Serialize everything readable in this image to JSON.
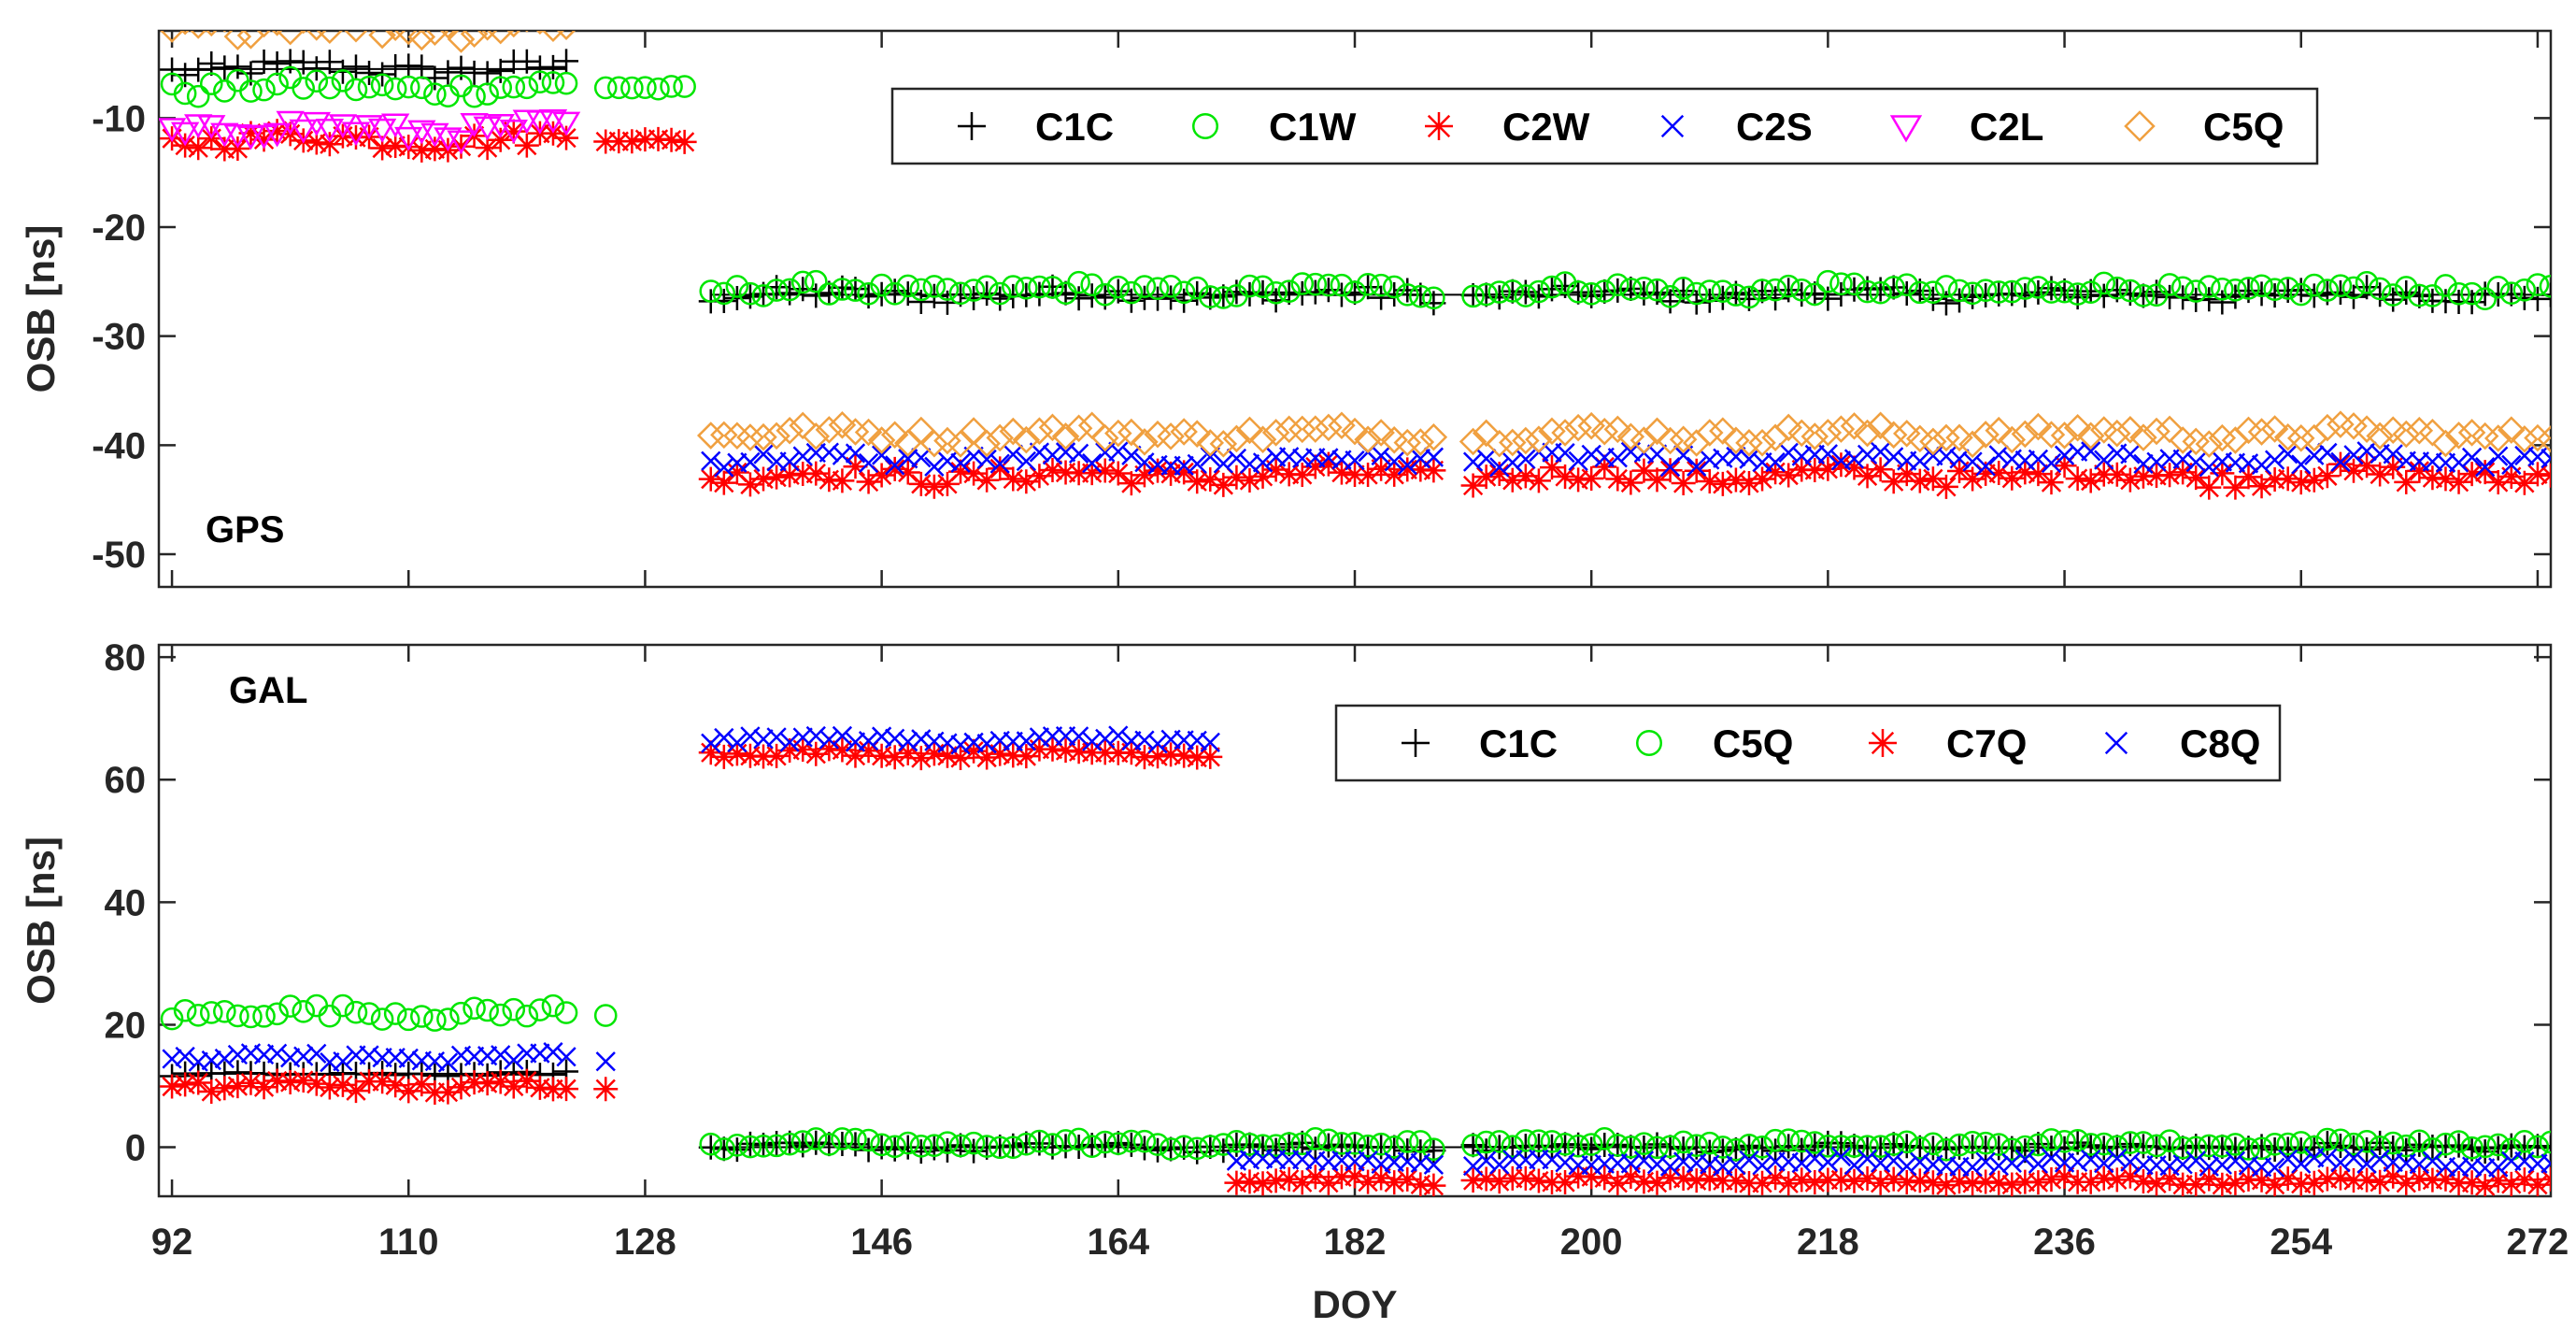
{
  "chart_data": [
    {
      "type": "scatter",
      "panel": "GPS",
      "xlabel": "",
      "ylabel": "OSB [ns]",
      "xlim": [
        91,
        273
      ],
      "ylim": [
        -53,
        -2
      ],
      "xticks": [
        92,
        110,
        128,
        146,
        164,
        182,
        200,
        218,
        236,
        254,
        272
      ],
      "yticks": [
        -10,
        -20,
        -30,
        -40,
        -50
      ],
      "legend_position": "top-right",
      "series": [
        {
          "name": "C1C",
          "marker": "+",
          "color": "#000000",
          "segments": [
            {
              "x_start": 92,
              "x_end": 122,
              "y": -5.5,
              "jitter": 0.7
            },
            {
              "x_start": 133,
              "x_end": 273,
              "y": -26.2,
              "jitter": 0.6
            }
          ]
        },
        {
          "name": "C1W",
          "marker": "circle",
          "color": "#00e600",
          "segments": [
            {
              "x_start": 92,
              "x_end": 122,
              "y": -7.2,
              "jitter": 0.7
            },
            {
              "x_start": 125,
              "x_end": 131,
              "y": -7.2,
              "jitter": 0.2
            },
            {
              "x_start": 133,
              "x_end": 273,
              "y": -25.8,
              "jitter": 0.6
            }
          ]
        },
        {
          "name": "C2W",
          "marker": "asterisk",
          "color": "#ff0000",
          "segments": [
            {
              "x_start": 92,
              "x_end": 122,
              "y": -12,
              "jitter": 0.8
            },
            {
              "x_start": 125,
              "x_end": 131,
              "y": -12,
              "jitter": 0.2
            },
            {
              "x_start": 133,
              "x_end": 273,
              "y": -42.8,
              "jitter": 0.8
            }
          ]
        },
        {
          "name": "C2S",
          "marker": "x",
          "color": "#0000ff",
          "segments": [
            {
              "x_start": 133,
              "x_end": 273,
              "y": -41.3,
              "jitter": 0.6
            }
          ]
        },
        {
          "name": "C2L",
          "marker": "triangle-down",
          "color": "#ff00ff",
          "segments": [
            {
              "x_start": 92,
              "x_end": 122,
              "y": -11,
              "jitter": 0.8
            }
          ]
        },
        {
          "name": "C5Q",
          "marker": "diamond",
          "color": "#f0a040",
          "segments": [
            {
              "x_start": 92,
              "x_end": 122,
              "y": -1.5,
              "jitter": 1.0
            },
            {
              "x_start": 133,
              "x_end": 273,
              "y": -39,
              "jitter": 0.7
            }
          ]
        }
      ],
      "gaps": [
        [
          188.5,
          190.5
        ]
      ]
    },
    {
      "type": "scatter",
      "panel": "GAL",
      "xlabel": "DOY",
      "ylabel": "OSB [ns]",
      "xlim": [
        91,
        273
      ],
      "ylim": [
        -8,
        82
      ],
      "xticks": [
        92,
        110,
        128,
        146,
        164,
        182,
        200,
        218,
        236,
        254,
        272
      ],
      "yticks": [
        0,
        20,
        40,
        60,
        80
      ],
      "legend_position": "top-right",
      "series": [
        {
          "name": "C1C",
          "marker": "+",
          "color": "#000000",
          "segments": [
            {
              "x_start": 92,
              "x_end": 122,
              "y": 12,
              "jitter": 0.3
            },
            {
              "x_start": 133,
              "x_end": 273,
              "y": 0,
              "jitter": 0.6
            }
          ]
        },
        {
          "name": "C5Q",
          "marker": "circle",
          "color": "#00e600",
          "segments": [
            {
              "x_start": 92,
              "x_end": 122,
              "y": 22,
              "jitter": 1.0
            },
            {
              "x_start": 125,
              "x_end": 125,
              "y": 21.5,
              "jitter": 0
            },
            {
              "x_start": 133,
              "x_end": 273,
              "y": 0.5,
              "jitter": 0.7
            }
          ]
        },
        {
          "name": "C7Q",
          "marker": "asterisk",
          "color": "#ff0000",
          "segments": [
            {
              "x_start": 92,
              "x_end": 122,
              "y": 10,
              "jitter": 1.0
            },
            {
              "x_start": 125,
              "x_end": 125,
              "y": 9.5,
              "jitter": 0
            },
            {
              "x_start": 133,
              "x_end": 171,
              "y": 64.3,
              "jitter": 0.6
            },
            {
              "x_start": 173,
              "x_end": 273,
              "y": -5.5,
              "jitter": 0.6
            }
          ]
        },
        {
          "name": "C8Q",
          "marker": "x",
          "color": "#0000ff",
          "segments": [
            {
              "x_start": 92,
              "x_end": 122,
              "y": 14.5,
              "jitter": 1.0
            },
            {
              "x_start": 125,
              "x_end": 125,
              "y": 14,
              "jitter": 0
            },
            {
              "x_start": 133,
              "x_end": 171,
              "y": 66.5,
              "jitter": 0.6
            },
            {
              "x_start": 173,
              "x_end": 273,
              "y": -2.5,
              "jitter": 0.7
            }
          ]
        }
      ],
      "gaps": [
        [
          188.5,
          190.5
        ]
      ]
    }
  ]
}
